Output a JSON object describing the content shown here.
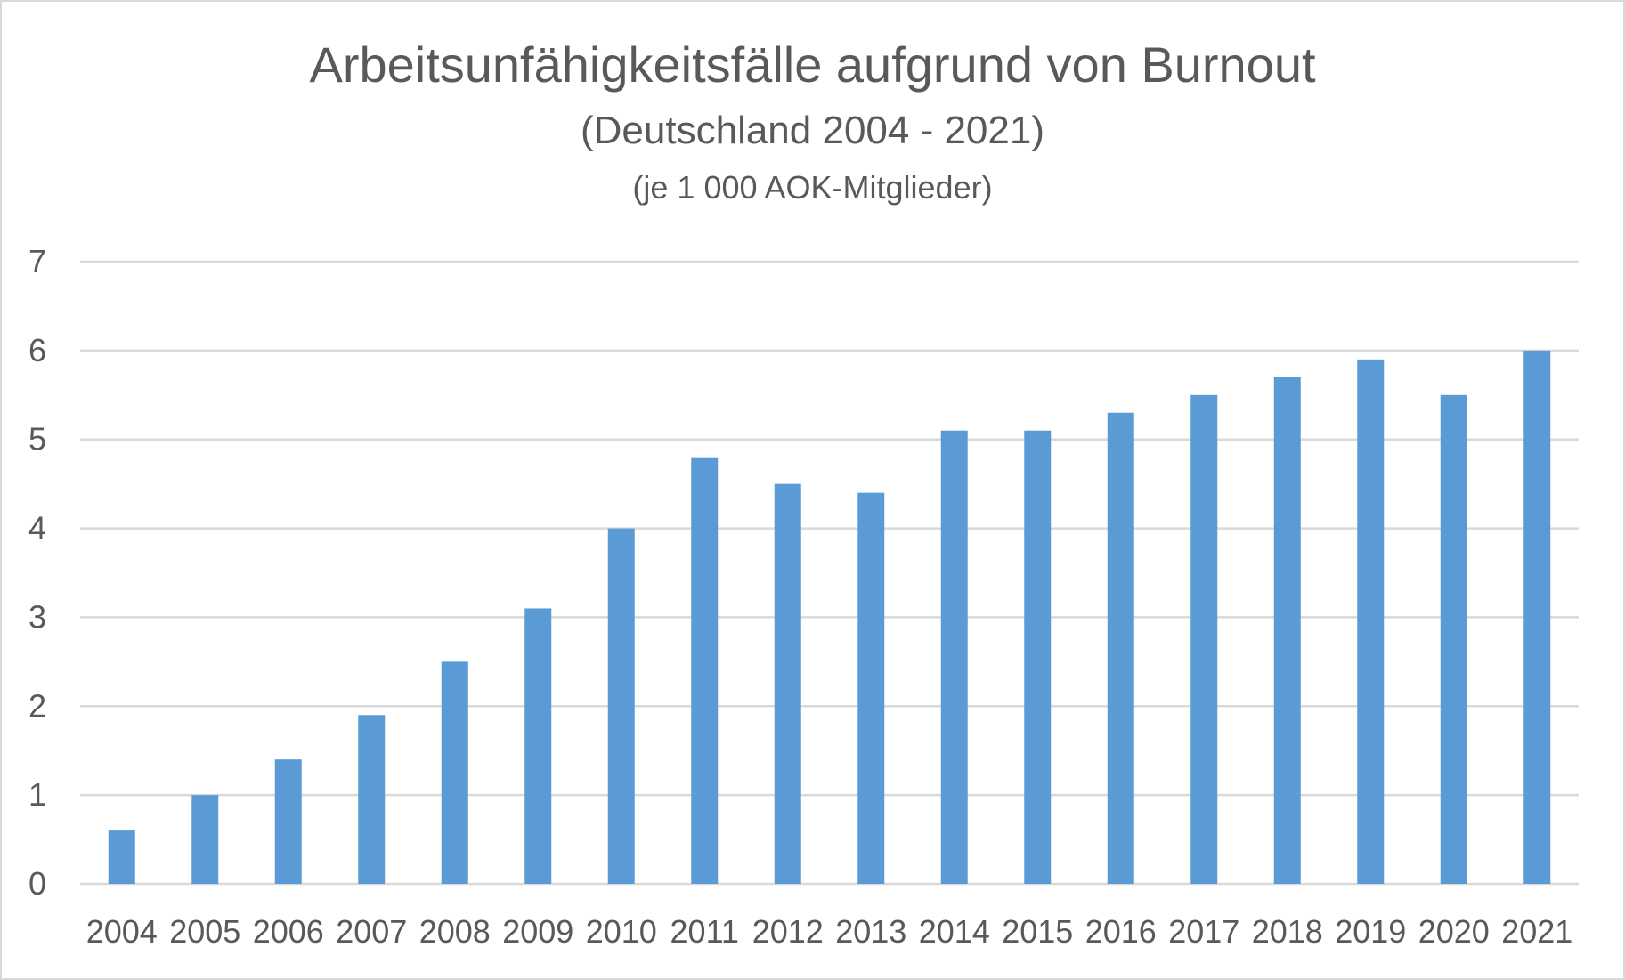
{
  "chart_data": {
    "type": "bar",
    "title": "Arbeitsunfähigkeitsfälle aufgrund von Burnout",
    "subtitle": "(Deutschland 2004 - 2021)",
    "subtitle2": "(je 1 000 AOK-Mitglieder)",
    "xlabel": "",
    "ylabel": "",
    "categories": [
      "2004",
      "2005",
      "2006",
      "2007",
      "2008",
      "2009",
      "2010",
      "2011",
      "2012",
      "2013",
      "2014",
      "2015",
      "2016",
      "2017",
      "2018",
      "2019",
      "2020",
      "2021"
    ],
    "values": [
      0.6,
      1.0,
      1.4,
      1.9,
      2.5,
      3.1,
      4.0,
      4.8,
      4.5,
      4.4,
      5.1,
      5.1,
      5.3,
      5.5,
      5.7,
      5.9,
      5.5,
      6.0
    ],
    "ylim": [
      0,
      7
    ],
    "yticks": [
      0,
      1,
      2,
      3,
      4,
      5,
      6,
      7
    ],
    "grid": true,
    "legend": "none",
    "colors": {
      "bar": "#5b9bd5",
      "grid": "#d9d9d9",
      "text": "#595959",
      "border": "#d9d9d9"
    }
  }
}
